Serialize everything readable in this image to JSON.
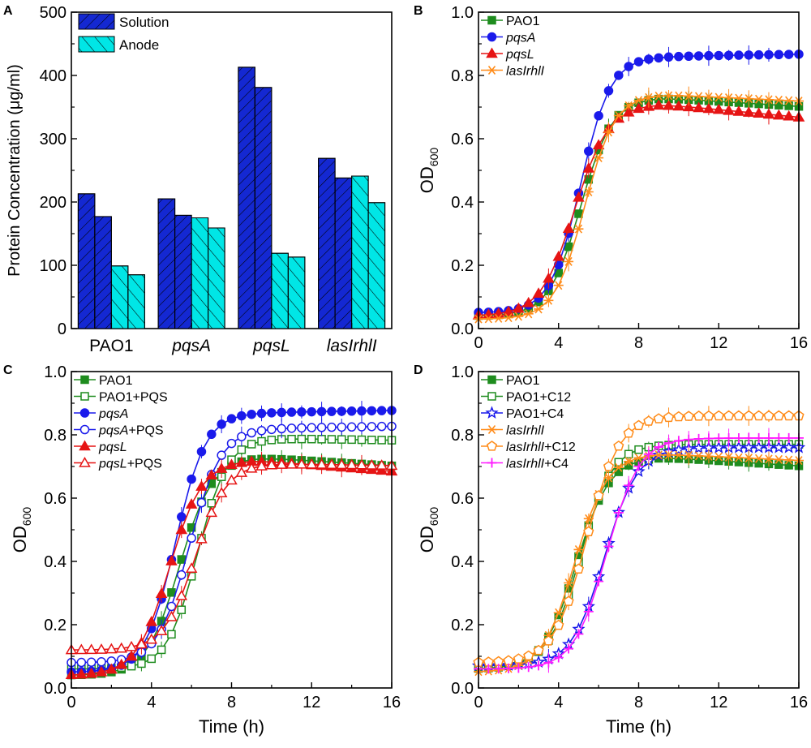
{
  "chart_data": [
    {
      "panel": "A",
      "type": "bar",
      "ylabel": "Protein Concentration (μg/ml)",
      "ylim": [
        0,
        500
      ],
      "yticks": [
        "0",
        "100",
        "200",
        "300",
        "400",
        "500"
      ],
      "categories": [
        {
          "label": "PAO1",
          "italic": false
        },
        {
          "label": "pqsA",
          "italic": true
        },
        {
          "label": "pqsL",
          "italic": true
        },
        {
          "label": "lasIrhlI",
          "italic": true
        }
      ],
      "series": [
        {
          "name": "Solution",
          "color": "#1428d2",
          "hatch": "forward",
          "values": [
            [
              213,
              177
            ],
            [
              205,
              179
            ],
            [
              413,
              381
            ],
            [
              269,
              238
            ]
          ]
        },
        {
          "name": "Anode",
          "color": "#00e6e6",
          "hatch": "backward",
          "values": [
            [
              99,
              85
            ],
            [
              175,
              159
            ],
            [
              119,
              113
            ],
            [
              241,
              199
            ]
          ]
        }
      ]
    },
    {
      "panel": "B",
      "type": "line",
      "xlim": [
        0,
        16
      ],
      "ylim": [
        0,
        1
      ],
      "xticks": [
        "0",
        "4",
        "8",
        "12",
        "16"
      ],
      "yticks": [
        "0.0",
        "0.2",
        "0.4",
        "0.6",
        "0.8",
        "1.0"
      ],
      "xlabel": "",
      "ylabel": "OD",
      "ylabel_sub": "600",
      "series": [
        {
          "name": "PAO1",
          "suffix": "",
          "color": "#1e8c1e",
          "marker": "square",
          "fill": true,
          "params": [
            0.73,
            5.1,
            1.25,
            0.04,
            -0.004,
            9
          ]
        },
        {
          "name": "pqsA",
          "suffix": "",
          "color": "#1a1aeb",
          "marker": "circle",
          "fill": true,
          "params": [
            0.86,
            5.1,
            1.2,
            0.05,
            0.001,
            9
          ]
        },
        {
          "name": "pqsL",
          "suffix": "",
          "color": "#e61414",
          "marker": "triangle",
          "fill": true,
          "params": [
            0.71,
            4.8,
            1.35,
            0.04,
            -0.006,
            9
          ]
        },
        {
          "name": "lasIrhlI",
          "suffix": "",
          "color": "#ff8c1a",
          "marker": "asterisk",
          "fill": false,
          "params": [
            0.74,
            5.3,
            1.2,
            0.03,
            -0.003,
            9
          ]
        }
      ]
    },
    {
      "panel": "C",
      "type": "line",
      "xlim": [
        0,
        16
      ],
      "ylim": [
        0,
        1
      ],
      "xticks": [
        "0",
        "4",
        "8",
        "12",
        "16"
      ],
      "yticks": [
        "0.0",
        "0.2",
        "0.4",
        "0.6",
        "0.8",
        "1.0"
      ],
      "xlabel": "Time (h)",
      "ylabel": "OD",
      "ylabel_sub": "600",
      "series": [
        {
          "name": "PAO1",
          "suffix": "",
          "color": "#1e8c1e",
          "marker": "square",
          "fill": true,
          "params": [
            0.73,
            5.4,
            1.3,
            0.04,
            -0.004,
            9
          ]
        },
        {
          "name": "PAO1",
          "suffix": "+PQS",
          "color": "#1e8c1e",
          "marker": "square",
          "fill": false,
          "params": [
            0.79,
            6.3,
            1.2,
            0.06,
            -0.001,
            9
          ]
        },
        {
          "name": "pqsA",
          "suffix": "",
          "color": "#1a1aeb",
          "marker": "circle",
          "fill": true,
          "params": [
            0.87,
            5.2,
            1.2,
            0.05,
            0.001,
            9
          ]
        },
        {
          "name": "pqsA",
          "suffix": "+PQS",
          "color": "#1a1aeb",
          "marker": "circle",
          "fill": false,
          "params": [
            0.82,
            5.9,
            1.25,
            0.08,
            0.001,
            9
          ]
        },
        {
          "name": "pqsL",
          "suffix": "",
          "color": "#e61414",
          "marker": "triangle",
          "fill": true,
          "params": [
            0.72,
            4.9,
            1.3,
            0.04,
            -0.005,
            9
          ]
        },
        {
          "name": "pqsL",
          "suffix": "+PQS",
          "color": "#e61414",
          "marker": "triangle",
          "fill": false,
          "params": [
            0.71,
            6.2,
            1.25,
            0.12,
            -0.001,
            9
          ]
        }
      ]
    },
    {
      "panel": "D",
      "type": "line",
      "xlim": [
        0,
        16
      ],
      "ylim": [
        0,
        1
      ],
      "xticks": [
        "0",
        "4",
        "8",
        "12",
        "16"
      ],
      "yticks": [
        "0.0",
        "0.2",
        "0.4",
        "0.6",
        "0.8",
        "1.0"
      ],
      "xlabel": "Time (h)",
      "ylabel": "OD",
      "ylabel_sub": "600",
      "series": [
        {
          "name": "PAO1",
          "suffix": "",
          "color": "#1e8c1e",
          "marker": "square",
          "fill": true,
          "params": [
            0.73,
            4.9,
            1.3,
            0.06,
            -0.004,
            9
          ]
        },
        {
          "name": "PAO1",
          "suffix": "+C12",
          "color": "#1e8c1e",
          "marker": "square",
          "fill": false,
          "params": [
            0.77,
            5.1,
            1.25,
            0.07,
            0.0,
            9
          ]
        },
        {
          "name": "PAO1",
          "suffix": "+C4",
          "color": "#1a1aeb",
          "marker": "star",
          "fill": false,
          "params": [
            0.76,
            6.3,
            1.3,
            0.07,
            0.0,
            9
          ]
        },
        {
          "name": "lasIrhlI",
          "suffix": "",
          "color": "#ff8c1a",
          "marker": "asterisk",
          "fill": false,
          "params": [
            0.74,
            4.8,
            1.3,
            0.05,
            -0.003,
            9
          ]
        },
        {
          "name": "lasIrhlI",
          "suffix": "+C12",
          "color": "#ff8c1a",
          "marker": "pentagon",
          "fill": false,
          "params": [
            0.86,
            5.4,
            1.3,
            0.08,
            0.0,
            9
          ]
        },
        {
          "name": "lasIrhlI",
          "suffix": "+C4",
          "color": "#ff1aff",
          "marker": "plus",
          "fill": false,
          "params": [
            0.79,
            6.4,
            1.3,
            0.06,
            0.0,
            9
          ]
        }
      ]
    }
  ]
}
